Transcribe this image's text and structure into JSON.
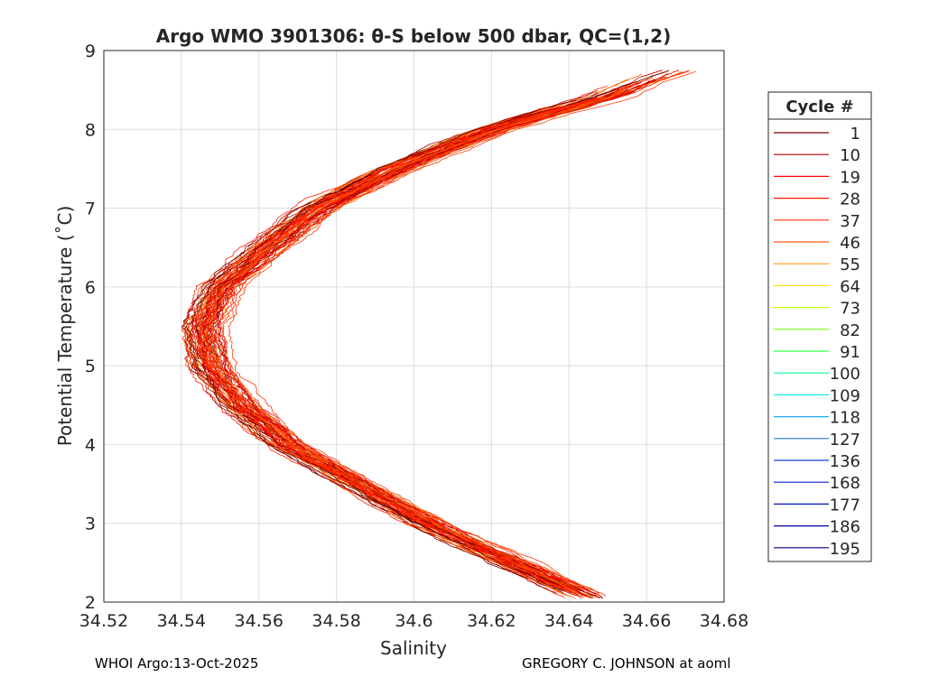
{
  "chart_data": {
    "type": "line",
    "title": "Argo WMO 3901306: θ-S below 500 dbar,  QC=(1,2)",
    "xlabel": "Salinity",
    "ylabel": "Potential Temperature (˚C)",
    "xlim": [
      34.52,
      34.68
    ],
    "ylim": [
      2,
      9
    ],
    "xticks": [
      "34.52",
      "34.54",
      "34.56",
      "34.58",
      "34.6",
      "34.62",
      "34.64",
      "34.66",
      "34.68"
    ],
    "yticks": [
      "2",
      "3",
      "4",
      "5",
      "6",
      "7",
      "8",
      "9"
    ],
    "grid": true,
    "mean_profile": {
      "theta": [
        2.05,
        2.5,
        3.0,
        3.5,
        4.0,
        4.5,
        5.0,
        5.5,
        6.0,
        6.5,
        7.0,
        7.5,
        8.0,
        8.4,
        8.75
      ],
      "salinity": [
        34.645,
        34.625,
        34.603,
        34.585,
        34.567,
        34.555,
        34.547,
        34.545,
        34.55,
        34.562,
        34.575,
        34.595,
        34.62,
        34.648,
        34.665
      ]
    },
    "profile_salinity_offsets": [
      -0.006,
      -0.004,
      -0.003,
      -0.002,
      -0.001,
      0,
      0.001,
      0.002,
      0.003,
      0.004,
      0.005,
      0.007,
      -0.005,
      0.0,
      0.002,
      -0.002,
      0.001,
      0.003,
      -0.001,
      0.006
    ],
    "legend": {
      "title": "Cycle #",
      "placement": "right-outside",
      "entries": [
        {
          "label": "1",
          "color": "#7f0000"
        },
        {
          "label": "10",
          "color": "#a80000"
        },
        {
          "label": "19",
          "color": "#ff0000"
        },
        {
          "label": "28",
          "color": "#ff1a00"
        },
        {
          "label": "37",
          "color": "#ff2e10"
        },
        {
          "label": "46",
          "color": "#ff5a10"
        },
        {
          "label": "55",
          "color": "#ff9a10"
        },
        {
          "label": "64",
          "color": "#ffe020"
        },
        {
          "label": "73",
          "color": "#c0ff00"
        },
        {
          "label": "82",
          "color": "#70ff10"
        },
        {
          "label": "91",
          "color": "#30ff40"
        },
        {
          "label": "100",
          "color": "#10ff90"
        },
        {
          "label": "109",
          "color": "#10f0e0"
        },
        {
          "label": "118",
          "color": "#20b0f0"
        },
        {
          "label": "127",
          "color": "#2070e0"
        },
        {
          "label": "136",
          "color": "#1040e0"
        },
        {
          "label": "168",
          "color": "#0020d0"
        },
        {
          "label": "177",
          "color": "#0010c0"
        },
        {
          "label": "186",
          "color": "#0000a0"
        },
        {
          "label": "195",
          "color": "#000080"
        }
      ]
    }
  },
  "footer": {
    "left": "WHOI Argo:13-Oct-2025",
    "right": "GREGORY C. JOHNSON at aoml"
  }
}
